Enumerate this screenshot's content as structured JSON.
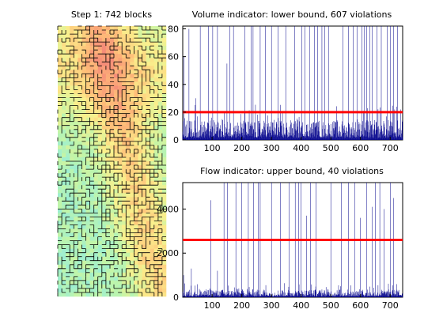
{
  "colors": {
    "bar": "#00008b",
    "threshold": "#ff0000",
    "axis": "#000000",
    "map_cool": "#80d8ff",
    "map_warm": "#ffb070",
    "map_contour": "#000000"
  },
  "chart_data": [
    {
      "type": "heatmap",
      "title": "Step 1: 742 blocks",
      "axes_visible": false,
      "colormap": "jet-pastel",
      "has_contours": true,
      "blocks": 742
    },
    {
      "type": "bar",
      "title": "Volume indicator: lower bound, 607 violations",
      "xlim": [
        1,
        742
      ],
      "ylim": [
        0,
        82
      ],
      "xticks": [
        100,
        200,
        300,
        400,
        500,
        600,
        700
      ],
      "yticks": [
        0,
        20,
        40,
        60,
        80
      ],
      "threshold": 20,
      "n": 742,
      "baseline": 8,
      "spike_positions": [
        5,
        22,
        45,
        60,
        88,
        102,
        118,
        150,
        160,
        172,
        210,
        232,
        238,
        262,
        280,
        300,
        322,
        348,
        378,
        402,
        412,
        428,
        445,
        455,
        470,
        480,
        492,
        540,
        560,
        575,
        588,
        605,
        612,
        620,
        632,
        640,
        655,
        670,
        690,
        700,
        712,
        725
      ],
      "spike_values": [
        60,
        80,
        30,
        82,
        82,
        82,
        82,
        55,
        82,
        82,
        82,
        82,
        82,
        82,
        82,
        82,
        82,
        82,
        82,
        82,
        82,
        82,
        82,
        82,
        82,
        82,
        82,
        82,
        82,
        82,
        82,
        82,
        82,
        82,
        82,
        82,
        82,
        82,
        82,
        82,
        82,
        82
      ]
    },
    {
      "type": "bar",
      "title": "Flow indicator: upper bound, 40 violations",
      "xlim": [
        1,
        742
      ],
      "ylim": [
        0,
        5200
      ],
      "xticks": [
        100,
        200,
        300,
        400,
        500,
        600,
        700
      ],
      "yticks": [
        0,
        2000,
        4000
      ],
      "threshold": 2600,
      "n": 742,
      "baseline": 200,
      "spike_positions": [
        4,
        30,
        95,
        118,
        140,
        152,
        180,
        200,
        222,
        240,
        255,
        262,
        300,
        330,
        360,
        380,
        392,
        400,
        418,
        432,
        450,
        500,
        535,
        560,
        580,
        600,
        620,
        640,
        650,
        665,
        680,
        700,
        712
      ],
      "spike_values": [
        1000,
        1300,
        4400,
        1200,
        5200,
        5200,
        5200,
        5200,
        5200,
        5200,
        5200,
        5200,
        5200,
        5200,
        5200,
        5200,
        5200,
        5200,
        3700,
        5200,
        5200,
        5200,
        5200,
        5200,
        5200,
        3600,
        5200,
        4100,
        5200,
        5200,
        4000,
        5200,
        4500
      ]
    }
  ]
}
